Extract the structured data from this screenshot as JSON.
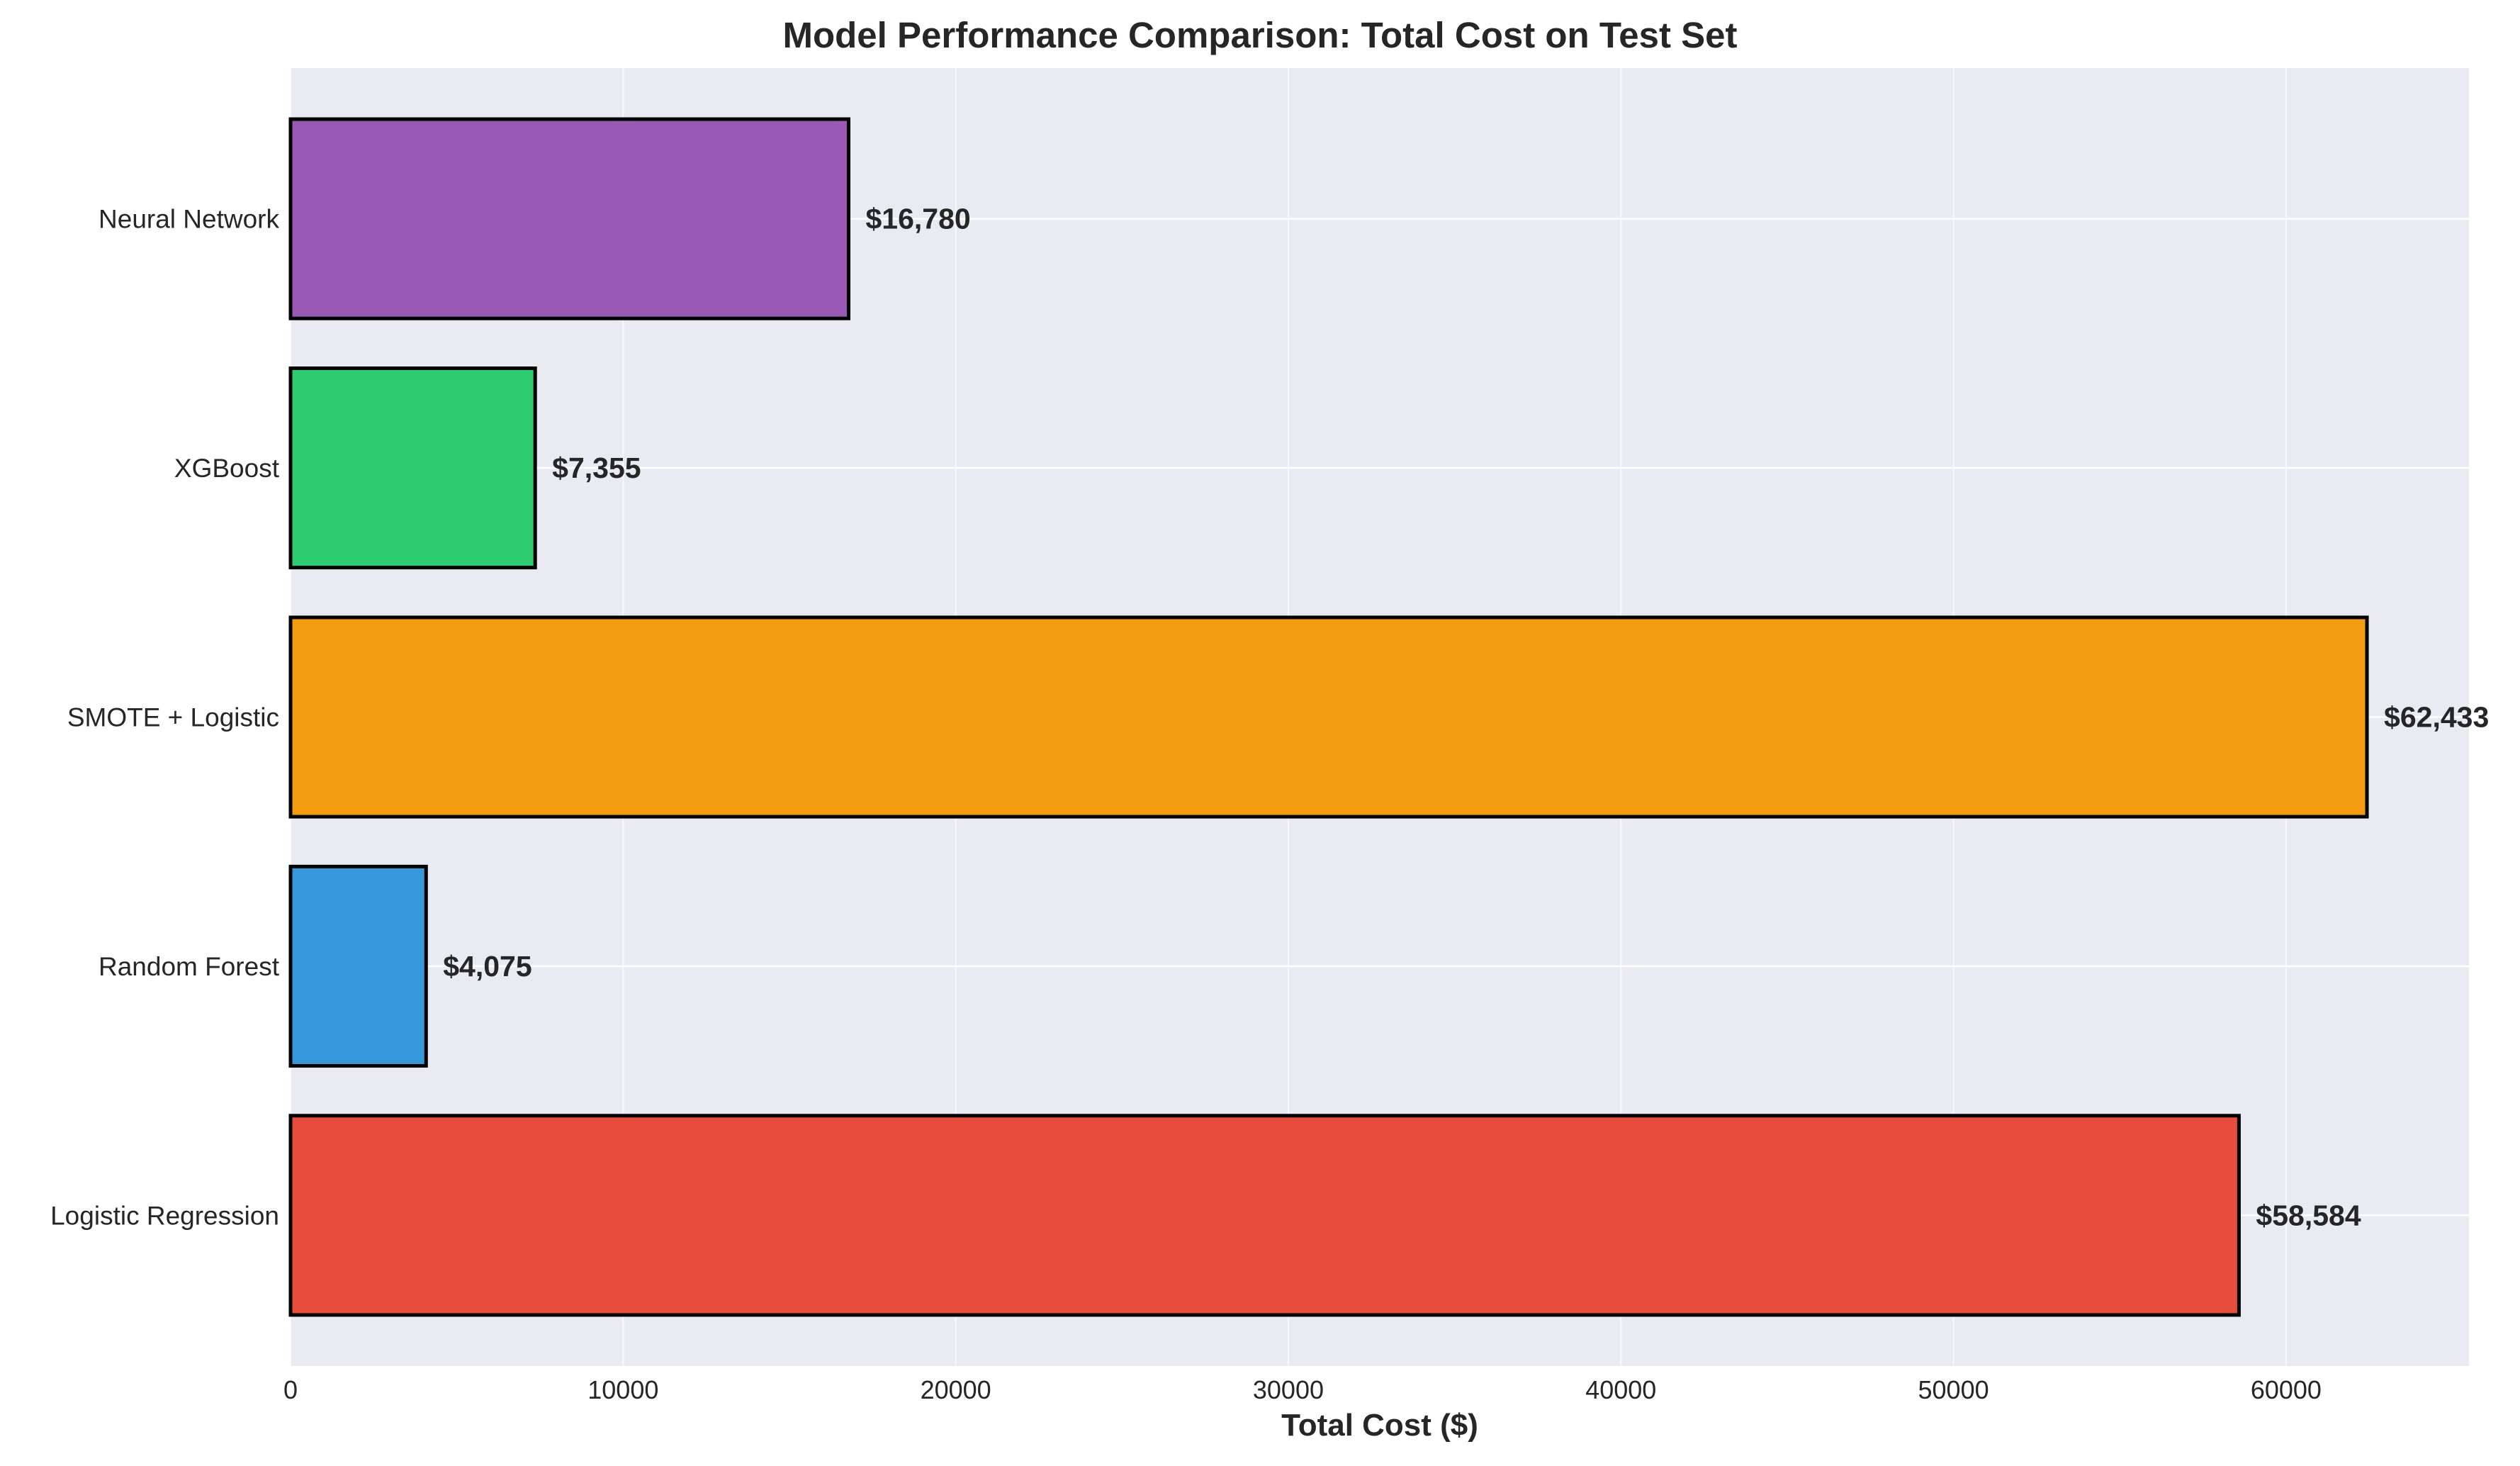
{
  "chart_data": {
    "type": "bar",
    "orientation": "horizontal",
    "title": "Model Performance Comparison: Total Cost on Test Set",
    "xlabel": "Total Cost ($)",
    "ylabel": "",
    "categories": [
      "Logistic Regression",
      "Random Forest",
      "SMOTE + Logistic",
      "XGBoost",
      "Neural Network"
    ],
    "values": [
      58584,
      4075,
      62433,
      7355,
      16780
    ],
    "value_labels": [
      "$58,584",
      "$4,075",
      "$62,433",
      "$7,355",
      "$16,780"
    ],
    "colors": [
      "#e74c3c",
      "#3498db",
      "#f39c12",
      "#2ecc71",
      "#9b59b6"
    ],
    "xlim": [
      0,
      65500
    ],
    "xticks": [
      0,
      10000,
      20000,
      30000,
      40000,
      50000,
      60000
    ],
    "xtick_labels": [
      "0",
      "10000",
      "20000",
      "30000",
      "40000",
      "50000",
      "60000"
    ],
    "grid": true,
    "background_color": "#eaeaf2",
    "grid_color": "#ffffff",
    "bar_edge_color": "#000000"
  }
}
